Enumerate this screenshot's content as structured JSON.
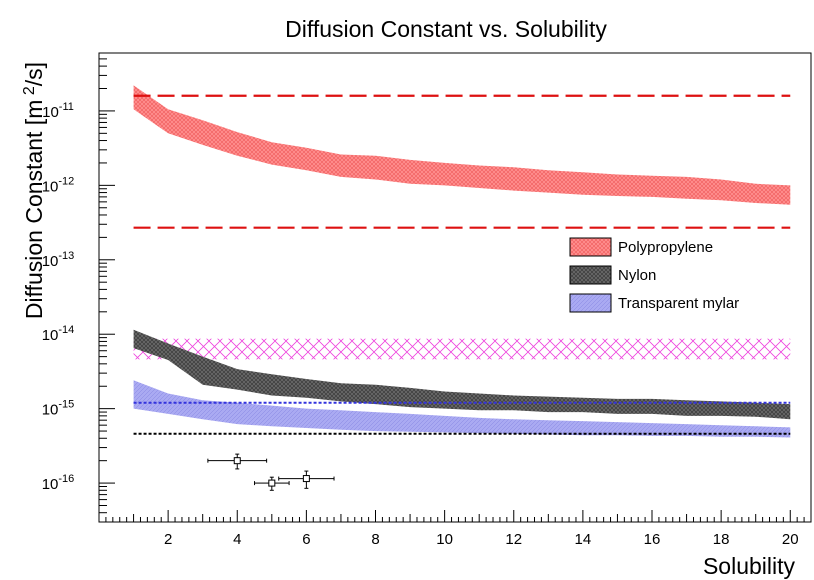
{
  "chart_data": {
    "type": "area",
    "title": "Diffusion Constant vs. Solubility",
    "xlabel": "Solubility",
    "ylabel": "Diffusion Constant [m 2/s]",
    "xlim": [
      0,
      20.6
    ],
    "ylim": [
      3e-17,
      6e-11
    ],
    "yscale": "log",
    "grid": false,
    "legend_position": "right-middle",
    "x_ticks": [
      "2",
      "4",
      "6",
      "8",
      "10",
      "12",
      "14",
      "16",
      "18",
      "20"
    ],
    "y_ticks": [
      "10-16",
      "10-15",
      "10-14",
      "10-13",
      "10-12",
      "10-11"
    ],
    "series": [
      {
        "name": "Polypropylene",
        "color": "#ff7b7b",
        "x": [
          1,
          2,
          3,
          4,
          5,
          6,
          7,
          8,
          9,
          10,
          11,
          12,
          13,
          14,
          15,
          16,
          17,
          18,
          19,
          20
        ],
        "upper": [
          2.2e-11,
          1.05e-11,
          7.5e-12,
          5.2e-12,
          3.8e-12,
          3.2e-12,
          2.6e-12,
          2.5e-12,
          2.2e-12,
          2e-12,
          1.85e-12,
          1.75e-12,
          1.6e-12,
          1.5e-12,
          1.4e-12,
          1.35e-12,
          1.3e-12,
          1.2e-12,
          1.05e-12,
          1e-12
        ],
        "lower": [
          1.05e-11,
          5e-12,
          3.5e-12,
          2.5e-12,
          1.9e-12,
          1.6e-12,
          1.3e-12,
          1.2e-12,
          1.05e-12,
          1e-12,
          9.2e-13,
          8.5e-13,
          8e-13,
          7.5e-13,
          7.2e-13,
          7e-13,
          6.6e-13,
          6.3e-13,
          5.8e-13,
          5.5e-13
        ]
      },
      {
        "name": "Nylon",
        "color": "#555555",
        "x": [
          1,
          2,
          3,
          4,
          5,
          6,
          7,
          8,
          9,
          10,
          11,
          12,
          13,
          14,
          15,
          16,
          17,
          18,
          19,
          20
        ],
        "upper": [
          1.15e-14,
          7.5e-15,
          5e-15,
          3.4e-15,
          2.9e-15,
          2.5e-15,
          2.2e-15,
          2.1e-15,
          1.9e-15,
          1.7e-15,
          1.6e-15,
          1.5e-15,
          1.45e-15,
          1.4e-15,
          1.35e-15,
          1.35e-15,
          1.3e-15,
          1.25e-15,
          1.2e-15,
          1.15e-15
        ],
        "lower": [
          6.5e-15,
          4.5e-15,
          2.1e-15,
          1.8e-15,
          1.5e-15,
          1.4e-15,
          1.25e-15,
          1.15e-15,
          1.05e-15,
          1e-15,
          9.5e-16,
          9.5e-16,
          9e-16,
          9e-16,
          8.5e-16,
          8.5e-16,
          8e-16,
          8e-16,
          7.8e-16,
          7.2e-16
        ]
      },
      {
        "name": "Transparent mylar",
        "color": "#9999ee",
        "x": [
          1,
          2,
          3,
          4,
          5,
          6,
          7,
          8,
          9,
          10,
          11,
          12,
          13,
          14,
          15,
          16,
          17,
          18,
          19,
          20
        ],
        "upper": [
          2.4e-15,
          1.6e-15,
          1.3e-15,
          1.2e-15,
          1.1e-15,
          1e-15,
          9.5e-16,
          9e-16,
          8.5e-16,
          8e-16,
          7.5e-16,
          7.2e-16,
          7e-16,
          6.8e-16,
          6.6e-16,
          6.4e-16,
          6.2e-16,
          6e-16,
          5.8e-16,
          5.6e-16
        ],
        "lower": [
          1e-15,
          8.5e-16,
          7.2e-16,
          6.2e-16,
          5.8e-16,
          5.5e-16,
          5.2e-16,
          5e-16,
          4.9e-16,
          4.8e-16,
          4.7e-16,
          4.6e-16,
          4.5e-16,
          4.4e-16,
          4.4e-16,
          4.3e-16,
          4.3e-16,
          4.2e-16,
          4.2e-16,
          4.1e-16
        ]
      }
    ],
    "bands": [
      {
        "color": "#ee44dd",
        "y_lower": 4.6e-15,
        "y_upper": 8.7e-15,
        "x_range": [
          1,
          20
        ]
      }
    ],
    "reference_lines": [
      {
        "y": 1.6e-11,
        "color": "#dd1111",
        "style": "long-dash"
      },
      {
        "y": 2.7e-13,
        "color": "#dd1111",
        "style": "long-dash"
      },
      {
        "y": 1.2e-15,
        "color": "#3333dd",
        "style": "dotted"
      },
      {
        "y": 4.6e-16,
        "color": "#000000",
        "style": "dotted"
      }
    ],
    "points": [
      {
        "x": 4,
        "y": 2e-16,
        "xerr": 0.85,
        "yerr_low": 4.5e-17,
        "yerr_high": 4.5e-17
      },
      {
        "x": 5,
        "y": 1e-16,
        "xerr": 0.5,
        "yerr_low": 2e-17,
        "yerr_high": 2e-17
      },
      {
        "x": 6,
        "y": 1.15e-16,
        "xerr": 0.8,
        "yerr_low": 3e-17,
        "yerr_high": 3e-17
      }
    ]
  }
}
